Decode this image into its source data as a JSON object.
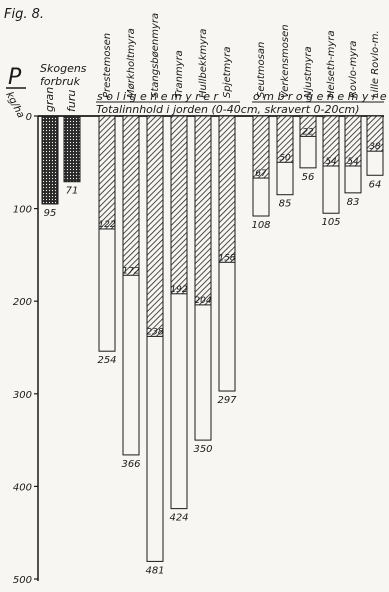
{
  "figure_label": "Fig. 8.",
  "forest": {
    "header_line1": "Skogens",
    "header_line2": "forbruk"
  },
  "groups": {
    "soligene": "s o l i g e n e   m y r e r",
    "ombrogene": "o m b r o g e n e   m y r e r"
  },
  "totals_caption": "Totalinnhold i jorden (0-40cm, skravert 0-20cm)",
  "chart_data": {
    "type": "bar",
    "title": "",
    "ylabel": "P",
    "yunit": "kg/ha",
    "ylim": [
      0,
      500
    ],
    "yticks": [
      0,
      100,
      200,
      300,
      400,
      500
    ],
    "y_inverted": true,
    "forest_consumption": [
      {
        "name": "gran",
        "value": 95
      },
      {
        "name": "furu",
        "value": 71
      }
    ],
    "mires": [
      {
        "name": "Prestemosen",
        "group": "soligene",
        "top_0_20": 122,
        "total_0_40": 254
      },
      {
        "name": "Mørkholtmyra",
        "group": "soligene",
        "top_0_20": 172,
        "total_0_40": 366
      },
      {
        "name": "Stangsbøenmyra",
        "group": "soligene",
        "top_0_20": 238,
        "total_0_40": 481
      },
      {
        "name": "Tranmyra",
        "group": "soligene",
        "top_0_20": 192,
        "total_0_40": 424
      },
      {
        "name": "Hullbekkmyra",
        "group": "soligene",
        "top_0_20": 204,
        "total_0_40": 350
      },
      {
        "name": "Spjetmyra",
        "group": "soligene",
        "top_0_20": 158,
        "total_0_40": 297
      },
      {
        "name": "Seutmosan",
        "group": "ombrogene",
        "top_0_20": 67,
        "total_0_40": 108
      },
      {
        "name": "Verkensmosen",
        "group": "ombrogene",
        "top_0_20": 50,
        "total_0_40": 85
      },
      {
        "name": "Njustmyra",
        "group": "ombrogene",
        "top_0_20": 22,
        "total_0_40": 56
      },
      {
        "name": "Helseth-myra",
        "group": "ombrogene",
        "top_0_20": 54,
        "total_0_40": 105
      },
      {
        "name": "Rovlo-myra",
        "group": "ombrogene",
        "top_0_20": 54,
        "total_0_40": 83
      },
      {
        "name": "Lille Rovlo-m.",
        "group": "ombrogene",
        "top_0_20": 38,
        "total_0_40": 64
      }
    ]
  }
}
